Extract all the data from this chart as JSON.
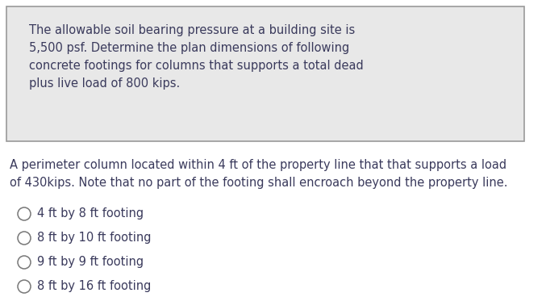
{
  "box_text_lines": [
    "The allowable soil bearing pressure at a building site is",
    "5,500 psf. Determine the plan dimensions of following",
    "concrete footings for columns that supports a total dead",
    "plus live load of 800 kips."
  ],
  "question_text_lines": [
    "A perimeter column located within 4 ft of the property line that that supports a load",
    "of 430kips. Note that no part of the footing shall encroach beyond the property line."
  ],
  "options": [
    "4 ft by 8 ft footing",
    "8 ft by 10 ft footing",
    "9 ft by 9 ft footing",
    "8 ft by 16 ft footing"
  ],
  "bg_color": "#ffffff",
  "box_bg_color": "#e8e8e8",
  "box_border_color": "#999999",
  "box_text_color": "#3a3a5c",
  "question_color": "#3a3a5c",
  "option_color": "#3a3a5c",
  "font_size_box": 10.5,
  "font_size_question": 10.5,
  "font_size_option": 10.5,
  "circle_color": "#777777"
}
